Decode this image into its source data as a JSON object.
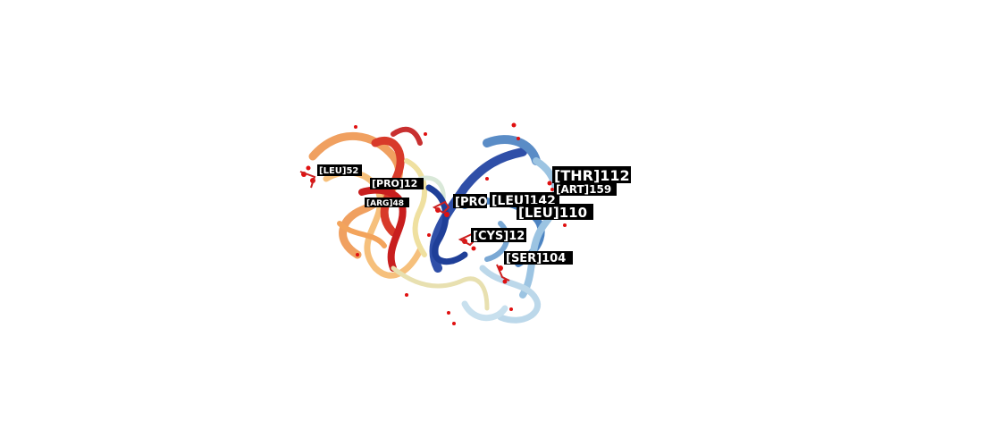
{
  "viewer": {
    "labels": [
      {
        "id": "leu52",
        "text": "[LEU]52"
      },
      {
        "id": "pro12",
        "text": "[PRO]12"
      },
      {
        "id": "arg48",
        "text": "[ARG]48"
      },
      {
        "id": "pro1",
        "text": "[PRO]"
      },
      {
        "id": "leu142",
        "text": "[LEU]142"
      },
      {
        "id": "thr112",
        "text": "[THR]112"
      },
      {
        "id": "art159",
        "text": "[ART]159"
      },
      {
        "id": "leu110",
        "text": "[LEU]110"
      },
      {
        "id": "cys",
        "text": "[CYS]12"
      },
      {
        "id": "ser104",
        "text": "[SER]104"
      }
    ],
    "colors": {
      "red": "#c81e1e",
      "orange": "#f0a060",
      "yellow": "#efe0a0",
      "lightblue": "#bcd8ea",
      "blue": "#4d84c2",
      "darkblue": "#1f3f98",
      "atom_red": "#e01010"
    }
  }
}
